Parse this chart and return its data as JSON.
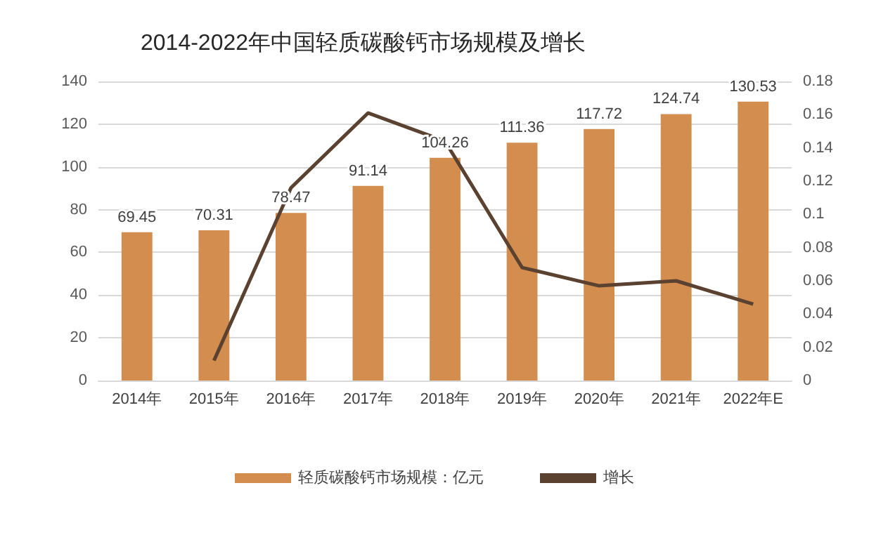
{
  "chart_data": {
    "type": "bar",
    "title": "2014-2022年中国轻质碳酸钙市场规模及增长",
    "categories": [
      "2014年",
      "2015年",
      "2016年",
      "2017年",
      "2018年",
      "2019年",
      "2020年",
      "2021年",
      "2022年E"
    ],
    "series": [
      {
        "name": "轻质碳酸钙市场规模：亿元",
        "color": "#d38d4f",
        "values": [
          69.45,
          70.31,
          78.47,
          91.14,
          104.26,
          111.36,
          117.72,
          124.74,
          130.53
        ],
        "value_labels": [
          "69.45",
          "70.31",
          "78.47",
          "91.14",
          "104.26",
          "111.36",
          "117.72",
          "124.74",
          "130.53"
        ]
      },
      {
        "name": "增长",
        "type": "line",
        "axis": "y2",
        "color": "#5b4230",
        "marker": "none",
        "values": [
          null,
          0.012,
          0.116,
          0.161,
          0.144,
          0.068,
          0.057,
          0.06,
          0.046
        ]
      }
    ],
    "ylim": [
      0,
      140
    ],
    "yticks": [
      0,
      20,
      40,
      60,
      80,
      100,
      120,
      140
    ],
    "y2lim": [
      0,
      0.18
    ],
    "y2ticks": [
      0,
      0.02,
      0.04,
      0.06,
      0.08,
      0.1,
      0.12,
      0.14,
      0.16,
      0.18
    ],
    "grid": "y",
    "legend": "bottom"
  }
}
